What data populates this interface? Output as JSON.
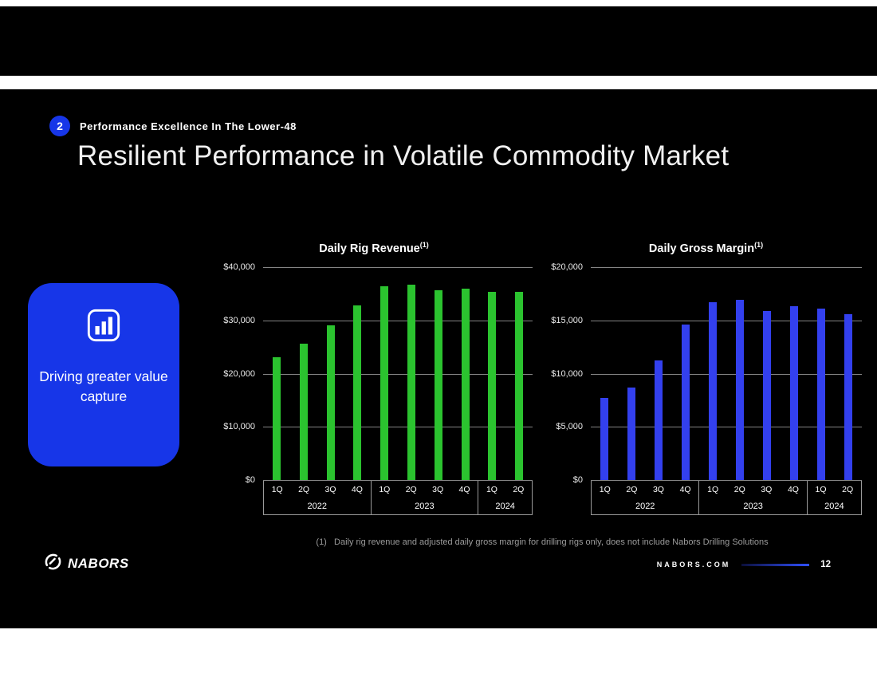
{
  "slide": {
    "badge_number": "2",
    "kicker": "Performance Excellence In The Lower-48",
    "title": "Resilient Performance in Volatile Commodity Market",
    "callout_text": "Driving greater value capture",
    "footnote": "(1)   Daily rig revenue and adjusted daily gross margin for drilling rigs only, does not include Nabors Drilling Solutions",
    "footer": {
      "brand": "NABORS",
      "website": "NABORS.COM",
      "page_number": "12"
    }
  },
  "colors": {
    "accent_blue": "#1736e8",
    "bar_green": "#2bc32f",
    "bar_blue": "#3340ee"
  },
  "chart_data": [
    {
      "type": "bar",
      "title": "Daily Rig Revenue",
      "footnote_ref": "(1)",
      "categories": [
        "1Q",
        "2Q",
        "3Q",
        "4Q",
        "1Q",
        "2Q",
        "3Q",
        "4Q",
        "1Q",
        "2Q"
      ],
      "year_groups": [
        {
          "label": "2022",
          "count": 4
        },
        {
          "label": "2023",
          "count": 4
        },
        {
          "label": "2024",
          "count": 2
        }
      ],
      "values": [
        23000,
        25600,
        29100,
        32800,
        36400,
        36700,
        35700,
        35900,
        35400,
        35300
      ],
      "ylim": [
        0,
        40000
      ],
      "yticks": [
        {
          "label": "$40,000",
          "value": 40000
        },
        {
          "label": "$30,000",
          "value": 30000
        },
        {
          "label": "$20,000",
          "value": 20000
        },
        {
          "label": "$10,000",
          "value": 10000
        },
        {
          "label": "$0",
          "value": 0
        }
      ],
      "bar_color": "#2bc32f",
      "grid": true,
      "legend": "none"
    },
    {
      "type": "bar",
      "title": "Daily Gross Margin",
      "footnote_ref": "(1)",
      "categories": [
        "1Q",
        "2Q",
        "3Q",
        "4Q",
        "1Q",
        "2Q",
        "3Q",
        "4Q",
        "1Q",
        "2Q"
      ],
      "year_groups": [
        {
          "label": "2022",
          "count": 4
        },
        {
          "label": "2023",
          "count": 4
        },
        {
          "label": "2024",
          "count": 2
        }
      ],
      "values": [
        7700,
        8700,
        11200,
        14600,
        16700,
        16900,
        15900,
        16300,
        16100,
        15600
      ],
      "ylim": [
        0,
        20000
      ],
      "yticks": [
        {
          "label": "$20,000",
          "value": 20000
        },
        {
          "label": "$15,000",
          "value": 15000
        },
        {
          "label": "$10,000",
          "value": 10000
        },
        {
          "label": "$5,000",
          "value": 5000
        },
        {
          "label": "$0",
          "value": 0
        }
      ],
      "bar_color": "#3340ee",
      "grid": true,
      "legend": "none"
    }
  ]
}
